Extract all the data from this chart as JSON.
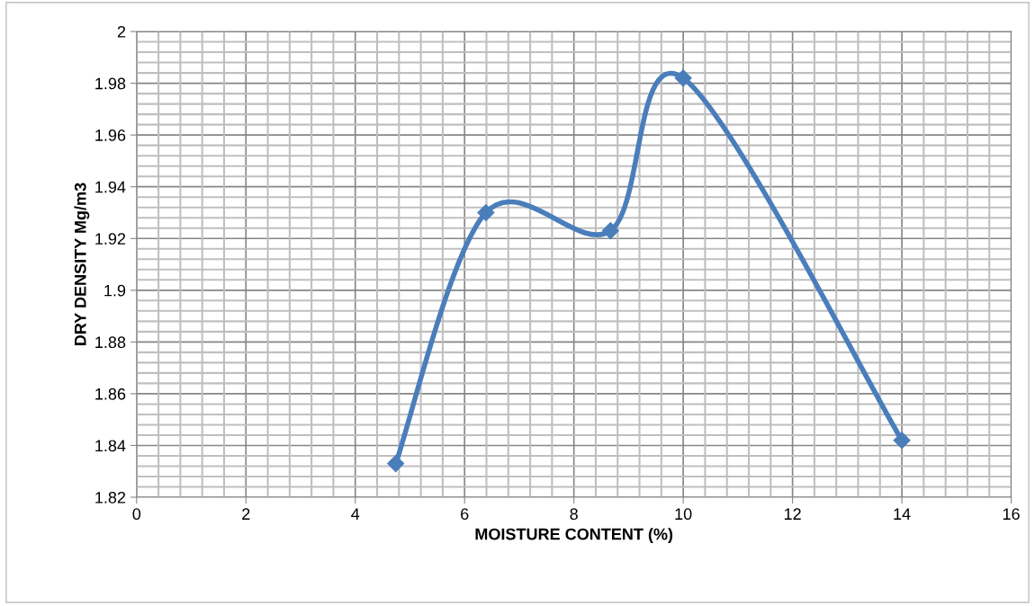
{
  "chart_data": {
    "type": "line",
    "xlabel": "MOISTURE CONTENT (%)",
    "ylabel": "DRY DENSITY Mg/m3",
    "x": [
      4.74,
      6.39,
      8.67,
      10,
      14
    ],
    "series": [
      {
        "color": "#4a7ebb",
        "values": [
          1.833,
          1.93,
          1.923,
          1.982,
          1.842
        ]
      }
    ],
    "xlim": [
      0,
      16
    ],
    "xticks": [
      0,
      2,
      4,
      6,
      8,
      10,
      12,
      14,
      16
    ],
    "ylim": [
      1.82,
      2
    ],
    "yticks": [
      1.82,
      1.84,
      1.86,
      1.88,
      1.9,
      1.92,
      1.94,
      1.96,
      1.98,
      2
    ],
    "grid": true,
    "marker": "diamond",
    "line_style": "solid"
  }
}
